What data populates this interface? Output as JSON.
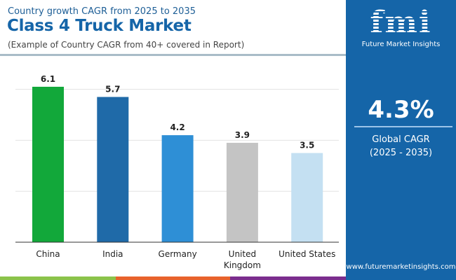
{
  "header": {
    "subtitle": "Country growth CAGR from 2025 to 2035",
    "title": "Class 4 Truck Market",
    "note": "(Example of Country CAGR from 40+ covered in Report)"
  },
  "panel": {
    "logo": "fmi",
    "logo_sub": "Future Market Insights",
    "value": "4.3%",
    "label_line1": "Global CAGR",
    "label_line2": "(2025 - 2035)",
    "url": "www.futuremarketinsights.com",
    "bg_color": "#1565a8"
  },
  "strip_colors": [
    "#8bc34a",
    "#e8622c",
    "#7b2d8e"
  ],
  "chart_data": {
    "type": "bar",
    "categories": [
      "China",
      "India",
      "Germany",
      "United Kingdom",
      "United States"
    ],
    "values": [
      6.1,
      5.7,
      4.2,
      3.9,
      3.5
    ],
    "labels": [
      "6.1",
      "5.7",
      "4.2",
      "3.9",
      "3.5"
    ],
    "colors": [
      "#12a83a",
      "#1f6aa8",
      "#2e8fd6",
      "#c4c4c4",
      "#c4e0f2"
    ],
    "ylim": [
      0,
      6.1
    ],
    "gridlines": [
      2,
      4,
      6
    ],
    "grid": true,
    "xlabel": "",
    "ylabel": ""
  }
}
